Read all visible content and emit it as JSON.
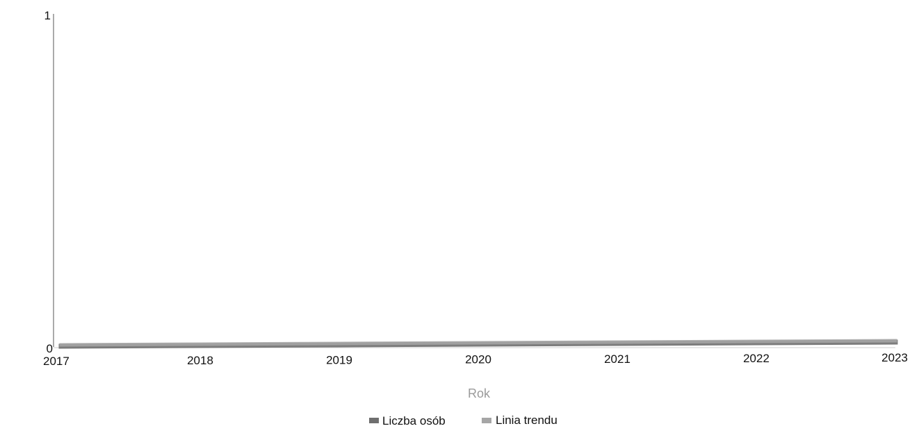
{
  "chart_data": {
    "type": "line",
    "title": "",
    "xlabel": "Rok",
    "ylabel": "",
    "x": [
      "2017",
      "2018",
      "2019",
      "2020",
      "2021",
      "2022",
      "2023"
    ],
    "ylim": [
      0,
      1
    ],
    "yticks": [
      "0",
      "1"
    ],
    "grid": false,
    "legend_position": "bottom-center",
    "series": [
      {
        "name": "Liczba osób",
        "values": [
          0,
          0,
          0,
          0,
          0,
          0,
          0
        ],
        "color": "#6f6f6f"
      },
      {
        "name": "Linia trendu",
        "values": [
          0,
          0,
          0,
          0,
          0,
          0,
          0
        ],
        "color": "#a6a6a6"
      }
    ],
    "legend": [
      "Liczba osób",
      "Linia trendu"
    ]
  }
}
